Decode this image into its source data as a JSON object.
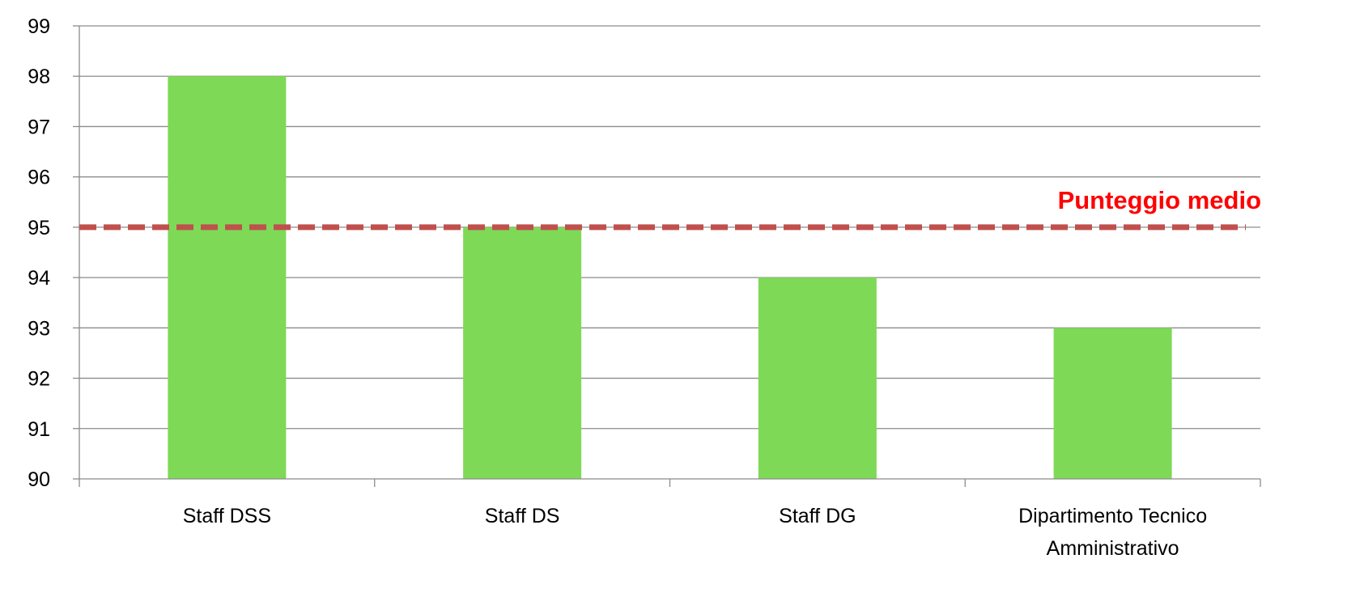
{
  "chart_data": {
    "type": "bar",
    "categories": [
      "Staff DSS",
      "Staff DS",
      "Staff DG",
      "Dipartimento Tecnico Amministrativo"
    ],
    "category_label_lines": [
      [
        "Staff DSS"
      ],
      [
        "Staff DS"
      ],
      [
        "Staff DG"
      ],
      [
        "Dipartimento Tecnico",
        "Amministrativo"
      ]
    ],
    "values": [
      98,
      95,
      94,
      93
    ],
    "ylim": [
      90,
      99
    ],
    "y_ticks": [
      90,
      91,
      92,
      93,
      94,
      95,
      96,
      97,
      98,
      99
    ],
    "grid": true,
    "reference_line": {
      "value": 95,
      "label": "Punteggio medio",
      "style": "dashed"
    },
    "colors": {
      "bar": "#7ed957",
      "reference_line": "#c0504d",
      "reference_label": "#ff0000",
      "grid": "#8c8c8c",
      "text": "#000000"
    }
  }
}
